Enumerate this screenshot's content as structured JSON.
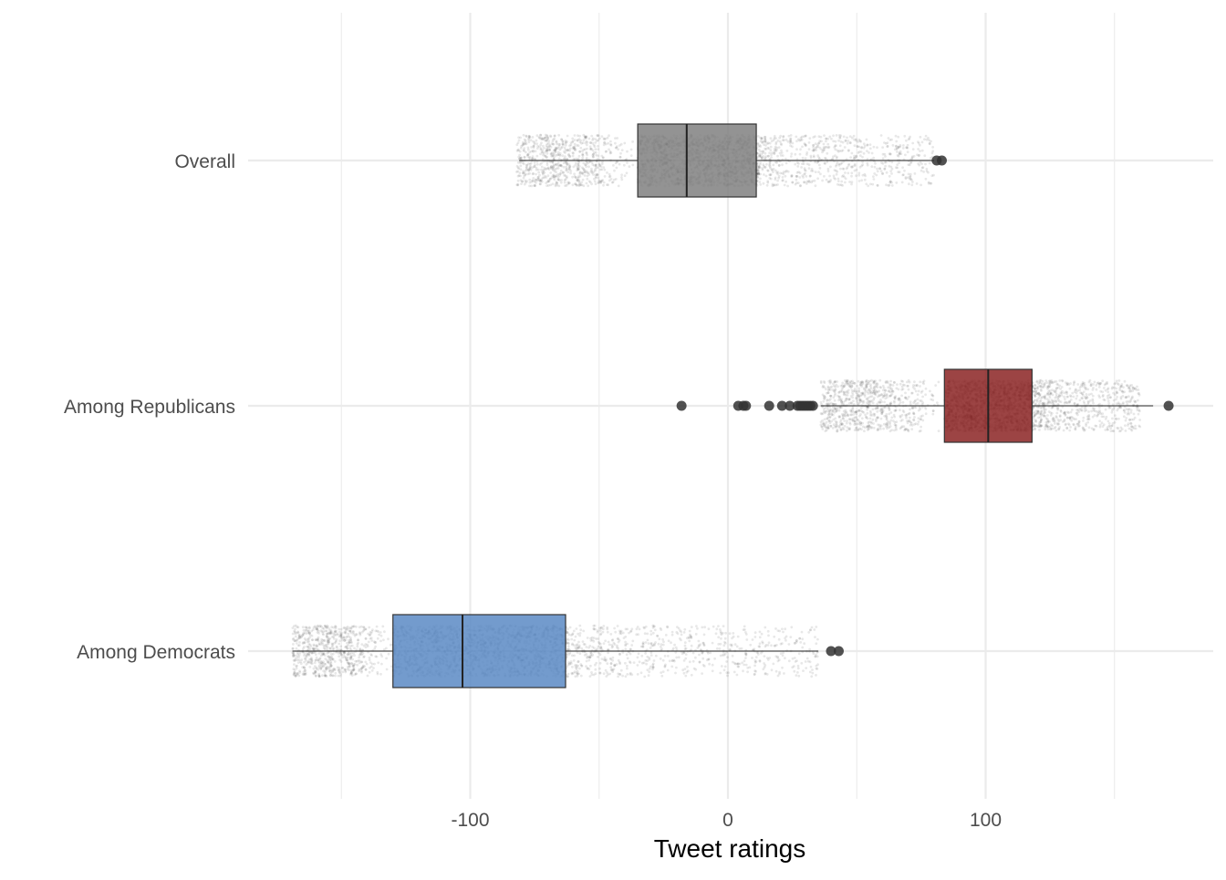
{
  "chart_data": {
    "type": "boxplot",
    "orientation": "horizontal",
    "title": "",
    "xlabel": "Tweet ratings",
    "ylabel": "",
    "xlim": [
      -150,
      150
    ],
    "x_ticks": [
      -100,
      0,
      100
    ],
    "x_tick_labels": [
      "-100",
      "0",
      "100"
    ],
    "grid": true,
    "categories": [
      "Overall",
      "Among Republicans",
      "Among Democrats"
    ],
    "series": [
      {
        "category": "Overall",
        "color": "#808080",
        "whisker_low": -81,
        "q1": -35,
        "median": -16,
        "q3": 11,
        "whisker_high": 80,
        "outliers": [
          81,
          83
        ],
        "jitter_range": [
          -82,
          80
        ],
        "jitter_count": 3000
      },
      {
        "category": "Among Republicans",
        "color": "#8b2323",
        "whisker_low": 36,
        "q1": 84,
        "median": 101,
        "q3": 118,
        "whisker_high": 165,
        "outliers": [
          -18,
          4,
          6,
          7,
          16,
          21,
          24,
          27,
          28,
          29,
          30,
          31,
          32,
          33,
          171
        ],
        "jitter_range": [
          36,
          160
        ],
        "jitter_count": 3000
      },
      {
        "category": "Among Democrats",
        "color": "#5b8ac4",
        "whisker_low": -169,
        "q1": -130,
        "median": -103,
        "q3": -63,
        "whisker_high": 35,
        "outliers": [
          40,
          43
        ],
        "jitter_range": [
          -169,
          35
        ],
        "jitter_count": 3000
      }
    ]
  }
}
